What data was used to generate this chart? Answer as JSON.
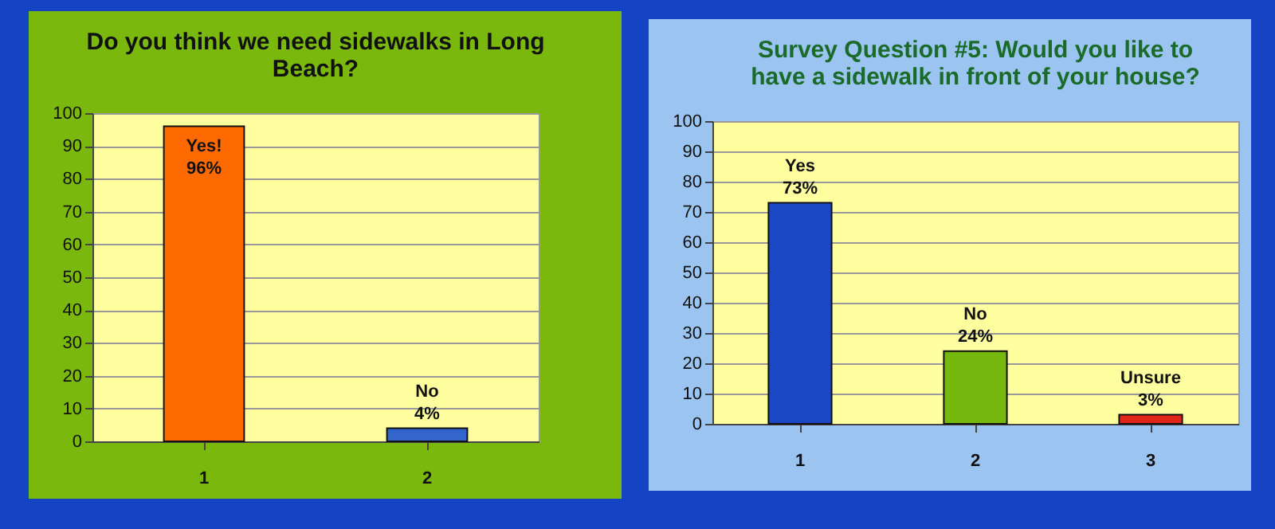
{
  "chart_data": [
    {
      "type": "bar",
      "title": "Do you think we need sidewalks in Long Beach?",
      "categories": [
        "1",
        "2"
      ],
      "values": [
        96,
        4
      ],
      "colors": [
        "#ff6a00",
        "#3366cc"
      ],
      "value_labels": [
        "Yes!\n96%",
        "No\n4%"
      ],
      "ylim": [
        0,
        100
      ],
      "yticks": [
        0,
        10,
        20,
        30,
        40,
        50,
        60,
        70,
        80,
        90,
        100
      ],
      "grid": "y"
    },
    {
      "type": "bar",
      "title": "Survey Question #5:  Would you like to have a sidewalk in front of your house?",
      "categories": [
        "1",
        "2",
        "3"
      ],
      "values": [
        73,
        24,
        3
      ],
      "colors": [
        "#1a47c4",
        "#77b80f",
        "#e02418"
      ],
      "value_labels": [
        "Yes\n73%",
        "No\n24%",
        "Unsure\n3%"
      ],
      "ylim": [
        0,
        100
      ],
      "yticks": [
        0,
        10,
        20,
        30,
        40,
        50,
        60,
        70,
        80,
        90,
        100
      ],
      "grid": "y"
    }
  ]
}
